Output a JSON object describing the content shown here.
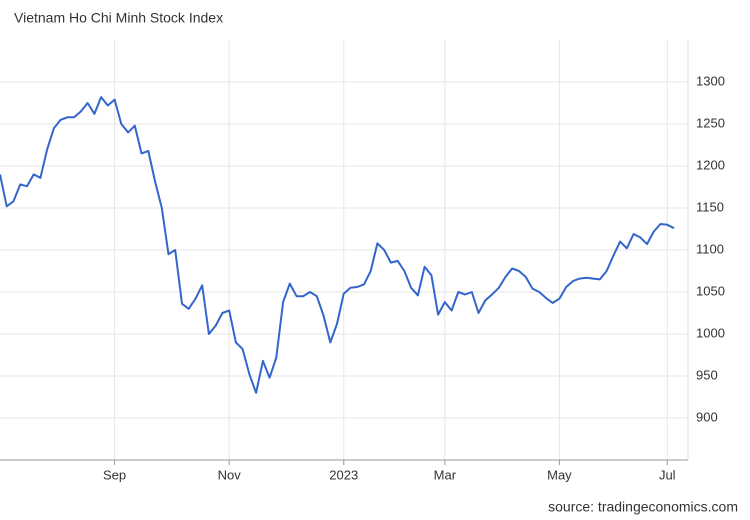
{
  "chart_data": {
    "type": "line",
    "title": "Vietnam Ho Chi Minh Stock Index",
    "source": "source: tradingeconomics.com",
    "categories": [
      null,
      null,
      null,
      null,
      null,
      null,
      null,
      null,
      null,
      null,
      null,
      null,
      null,
      null,
      null,
      null,
      null,
      "Sep",
      null,
      null,
      null,
      null,
      null,
      null,
      null,
      null,
      null,
      null,
      null,
      null,
      null,
      null,
      null,
      null,
      "Nov",
      null,
      null,
      null,
      null,
      null,
      null,
      null,
      null,
      null,
      null,
      null,
      null,
      null,
      null,
      null,
      null,
      "2023",
      null,
      null,
      null,
      null,
      null,
      null,
      null,
      null,
      null,
      null,
      null,
      null,
      null,
      null,
      "Mar",
      null,
      null,
      null,
      null,
      null,
      null,
      null,
      null,
      null,
      null,
      null,
      null,
      null,
      null,
      null,
      null,
      "May",
      null,
      null,
      null,
      null,
      null,
      null,
      null,
      null,
      null,
      null,
      null,
      null,
      null,
      null,
      null,
      "Jul",
      null
    ],
    "series": [
      {
        "name": "Vietnam Ho Chi Minh Stock Index",
        "color": "#3366cc",
        "values": [
          1190,
          1152,
          1158,
          1178,
          1176,
          1190,
          1186,
          1220,
          1245,
          1255,
          1258,
          1258,
          1265,
          1275,
          1262,
          1282,
          1272,
          1279,
          1250,
          1240,
          1248,
          1215,
          1218,
          1182,
          1150,
          1095,
          1100,
          1036,
          1030,
          1042,
          1058,
          1000,
          1010,
          1025,
          1028,
          990,
          982,
          952,
          930,
          968,
          948,
          972,
          1038,
          1060,
          1045,
          1045,
          1050,
          1045,
          1022,
          990,
          1012,
          1048,
          1055,
          1056,
          1059,
          1075,
          1108,
          1100,
          1085,
          1087,
          1075,
          1055,
          1046,
          1080,
          1070,
          1023,
          1038,
          1028,
          1050,
          1047,
          1050,
          1025,
          1040,
          1047,
          1055,
          1068,
          1078,
          1075,
          1068,
          1054,
          1050,
          1043,
          1037,
          1042,
          1056,
          1063,
          1066,
          1067,
          1066,
          1065,
          1075,
          1093,
          1110,
          1102,
          1119,
          1115,
          1107,
          1122,
          1131,
          1130,
          1126
        ]
      }
    ],
    "ylim": [
      850,
      1350
    ],
    "yticks": [
      900,
      950,
      1000,
      1050,
      1100,
      1150,
      1200,
      1250,
      1300
    ],
    "grid": true
  }
}
